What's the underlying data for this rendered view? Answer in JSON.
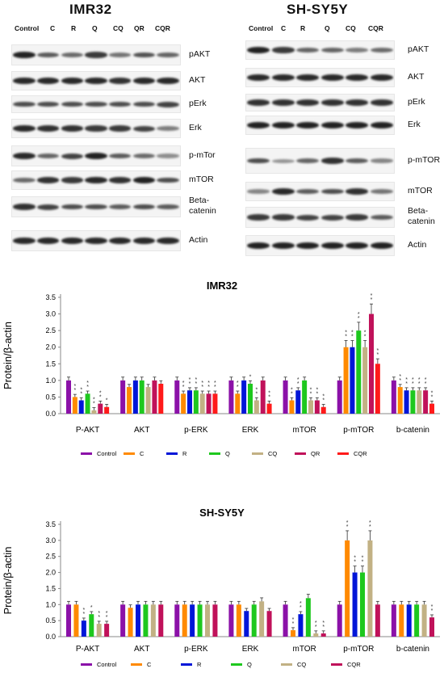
{
  "blots": [
    {
      "title": "IMR32",
      "lanes": [
        "Control",
        "C",
        "R",
        "Q",
        "CQ",
        "QR",
        "CQR"
      ],
      "proteins": [
        {
          "label": "pAKT",
          "intensity": [
            0.95,
            0.6,
            0.5,
            0.8,
            0.45,
            0.65,
            0.55
          ]
        },
        {
          "label": "AKT",
          "intensity": [
            0.9,
            0.9,
            0.9,
            0.9,
            0.85,
            0.9,
            0.9
          ]
        },
        {
          "label": "pErk",
          "intensity": [
            0.7,
            0.7,
            0.7,
            0.7,
            0.7,
            0.7,
            0.75
          ]
        },
        {
          "label": "Erk",
          "intensity": [
            0.9,
            0.85,
            0.85,
            0.8,
            0.8,
            0.75,
            0.4
          ]
        },
        {
          "label": "p-mTor",
          "intensity": [
            0.9,
            0.55,
            0.75,
            0.95,
            0.6,
            0.5,
            0.3
          ]
        },
        {
          "label": "mTOR",
          "intensity": [
            0.5,
            0.85,
            0.8,
            0.9,
            0.85,
            0.95,
            0.7
          ]
        },
        {
          "label": "Beta-\ncatenin",
          "intensity": [
            0.85,
            0.75,
            0.7,
            0.7,
            0.6,
            0.7,
            0.6
          ]
        },
        {
          "label": "Actin",
          "intensity": [
            0.9,
            0.9,
            0.9,
            0.9,
            0.9,
            0.9,
            0.9
          ]
        }
      ]
    },
    {
      "title": "SH-SY5Y",
      "lanes": [
        "Control",
        "C",
        "R",
        "Q",
        "CQ",
        "CQR"
      ],
      "proteins": [
        {
          "label": "pAKT",
          "intensity": [
            0.95,
            0.8,
            0.55,
            0.55,
            0.4,
            0.5
          ]
        },
        {
          "label": "AKT",
          "intensity": [
            0.9,
            0.9,
            0.9,
            0.9,
            0.9,
            0.9
          ]
        },
        {
          "label": "pErk",
          "intensity": [
            0.85,
            0.85,
            0.85,
            0.85,
            0.85,
            0.85
          ]
        },
        {
          "label": "Erk",
          "intensity": [
            0.95,
            0.95,
            0.95,
            0.95,
            0.95,
            0.95
          ]
        },
        {
          "label": "p-mTOR",
          "intensity": [
            0.7,
            0.25,
            0.55,
            0.85,
            0.6,
            0.35
          ]
        },
        {
          "label": "mTOR",
          "intensity": [
            0.35,
            0.9,
            0.6,
            0.7,
            0.85,
            0.45
          ]
        },
        {
          "label": "Beta-\ncatenin",
          "intensity": [
            0.8,
            0.8,
            0.75,
            0.75,
            0.8,
            0.6
          ]
        },
        {
          "label": "Actin",
          "intensity": [
            0.95,
            0.95,
            0.95,
            0.95,
            0.95,
            0.95
          ]
        }
      ]
    }
  ],
  "chart_data": [
    {
      "type": "bar",
      "title": "IMR32",
      "ylabel": "Protein/β-actin",
      "ylim": [
        0,
        3.5
      ],
      "yticks": [
        "0.0",
        "0.5",
        "1.0",
        "1.5",
        "2.0",
        "2.5",
        "3.0",
        "3.5"
      ],
      "categories": [
        "P-AKT",
        "AKT",
        "p-ERK",
        "ERK",
        "mTOR",
        "p-mTOR",
        "b-catenin"
      ],
      "legend_position": "bottom",
      "series": [
        {
          "name": "Control",
          "color": "#8b11a8",
          "values": [
            1.0,
            1.0,
            1.0,
            1.0,
            1.0,
            1.0,
            1.0
          ]
        },
        {
          "name": "C",
          "color": "#ff8a00",
          "values": [
            0.5,
            0.8,
            0.6,
            0.6,
            0.4,
            2.0,
            0.8
          ]
        },
        {
          "name": "R",
          "color": "#0016d8",
          "values": [
            0.4,
            1.0,
            0.7,
            1.0,
            0.7,
            2.0,
            0.7
          ]
        },
        {
          "name": "Q",
          "color": "#1ec81e",
          "values": [
            0.6,
            1.0,
            0.7,
            0.9,
            1.0,
            2.5,
            0.7
          ]
        },
        {
          "name": "CQ",
          "color": "#c2b184",
          "values": [
            0.1,
            0.8,
            0.6,
            0.4,
            0.4,
            2.0,
            0.7
          ]
        },
        {
          "name": "QR",
          "color": "#c0125a",
          "values": [
            0.3,
            1.0,
            0.6,
            1.0,
            0.4,
            3.0,
            0.7
          ]
        },
        {
          "name": "CQR",
          "color": "#ff1a1a",
          "values": [
            0.2,
            0.9,
            0.6,
            0.3,
            0.2,
            1.5,
            0.3
          ]
        }
      ],
      "significance": [
        [
          "",
          "**",
          "**",
          "**",
          "**",
          "**",
          "*"
        ],
        [
          "",
          "",
          "",
          "",
          "",
          "",
          ""
        ],
        [
          "",
          "**",
          "**",
          "**",
          "**",
          "**",
          "**"
        ],
        [
          "",
          "**",
          "",
          "*",
          "**",
          "",
          "**"
        ],
        [
          "",
          "**",
          "**",
          "",
          "**",
          "**",
          "**"
        ],
        [
          "",
          "**",
          "**",
          "**",
          "**",
          "**",
          "**"
        ],
        [
          "",
          "**",
          "**",
          "**",
          "**",
          "**",
          "**"
        ]
      ]
    },
    {
      "type": "bar",
      "title": "SH-SY5Y",
      "ylabel": "Protein/β-actin",
      "ylim": [
        0,
        3.5
      ],
      "yticks": [
        "0.0",
        "0.5",
        "1.0",
        "1.5",
        "2.0",
        "2.5",
        "3.0",
        "3.5"
      ],
      "categories": [
        "P-AKT",
        "AKT",
        "p-ERK",
        "ERK",
        "mTOR",
        "p-mTOR",
        "b-catenin"
      ],
      "legend_position": "bottom",
      "series": [
        {
          "name": "Control",
          "color": "#8b11a8",
          "values": [
            1.0,
            1.0,
            1.0,
            1.0,
            1.0,
            1.0,
            1.0
          ]
        },
        {
          "name": "C",
          "color": "#ff8a00",
          "values": [
            1.0,
            0.9,
            1.0,
            1.0,
            0.2,
            3.0,
            1.0
          ]
        },
        {
          "name": "R",
          "color": "#0016d8",
          "values": [
            0.5,
            1.0,
            1.0,
            0.8,
            0.7,
            2.0,
            1.0
          ]
        },
        {
          "name": "Q",
          "color": "#1ec81e",
          "values": [
            0.7,
            1.0,
            1.0,
            1.0,
            1.2,
            2.0,
            1.0
          ]
        },
        {
          "name": "CQ",
          "color": "#c2b184",
          "values": [
            0.4,
            1.0,
            1.0,
            1.1,
            0.1,
            3.0,
            1.0
          ]
        },
        {
          "name": "CQR",
          "color": "#c0125a",
          "values": [
            0.4,
            1.0,
            1.0,
            0.8,
            0.1,
            1.0,
            0.6
          ]
        }
      ],
      "significance": [
        [
          "",
          "",
          "**",
          "*",
          "**",
          "**"
        ],
        [
          "",
          "",
          "",
          "",
          "",
          ""
        ],
        [
          "",
          "",
          "",
          "",
          "",
          ""
        ],
        [
          "",
          "",
          "",
          "",
          "",
          ""
        ],
        [
          "",
          "**",
          "**",
          "",
          "**",
          "**"
        ],
        [
          "",
          "**",
          "**",
          "**",
          "**",
          ""
        ],
        [
          "",
          "",
          "",
          "",
          "",
          "**"
        ]
      ]
    }
  ]
}
